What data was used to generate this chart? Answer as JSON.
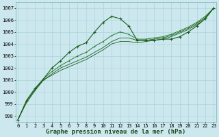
{
  "title": "Graphe pression niveau de la mer (hPa)",
  "x": [
    0,
    1,
    2,
    3,
    4,
    5,
    6,
    7,
    8,
    9,
    10,
    11,
    12,
    13,
    14,
    15,
    16,
    17,
    18,
    19,
    20,
    21,
    22,
    23
  ],
  "line_jagged": [
    997.7,
    999.3,
    1000.3,
    1001.1,
    1002.0,
    1002.6,
    1003.3,
    1003.8,
    1004.1,
    1005.0,
    1005.8,
    1006.3,
    1006.1,
    1005.5,
    1004.3,
    1004.3,
    1004.3,
    1004.4,
    1004.4,
    1004.6,
    1005.0,
    1005.5,
    1006.1,
    1007.0
  ],
  "line_smooth1": [
    997.7,
    999.2,
    1000.2,
    1001.0,
    1001.5,
    1002.0,
    1002.3,
    1002.6,
    1002.9,
    1003.3,
    1003.7,
    1004.2,
    1004.5,
    1004.5,
    1004.3,
    1004.3,
    1004.4,
    1004.5,
    1004.7,
    1005.0,
    1005.3,
    1005.7,
    1006.2,
    1007.0
  ],
  "line_smooth2": [
    997.7,
    999.2,
    1000.2,
    1001.1,
    1001.7,
    1002.2,
    1002.6,
    1003.0,
    1003.3,
    1003.8,
    1004.2,
    1004.7,
    1005.0,
    1004.8,
    1004.4,
    1004.4,
    1004.5,
    1004.6,
    1004.8,
    1005.1,
    1005.4,
    1005.8,
    1006.3,
    1007.0
  ],
  "line_smooth3": [
    997.7,
    999.1,
    1000.1,
    1001.0,
    1001.4,
    1001.8,
    1002.1,
    1002.4,
    1002.7,
    1003.1,
    1003.5,
    1004.0,
    1004.2,
    1004.2,
    1004.1,
    1004.2,
    1004.3,
    1004.4,
    1004.6,
    1004.9,
    1005.2,
    1005.6,
    1006.1,
    1007.0
  ],
  "bg_color": "#cce8ee",
  "grid_color": "#aad4dc",
  "line_dark": "#1a5c1a",
  "line_mid": "#2d7a2d",
  "ylim_min": 997.5,
  "ylim_max": 1007.5,
  "yticks": [
    998,
    999,
    1000,
    1001,
    1002,
    1003,
    1004,
    1005,
    1006,
    1007
  ],
  "xticks": [
    0,
    1,
    2,
    3,
    4,
    5,
    6,
    7,
    8,
    9,
    10,
    11,
    12,
    13,
    14,
    15,
    16,
    17,
    18,
    19,
    20,
    21,
    22,
    23
  ],
  "title_fontsize": 6.5,
  "tick_fontsize": 5.0,
  "title_color": "#1a4a1a"
}
